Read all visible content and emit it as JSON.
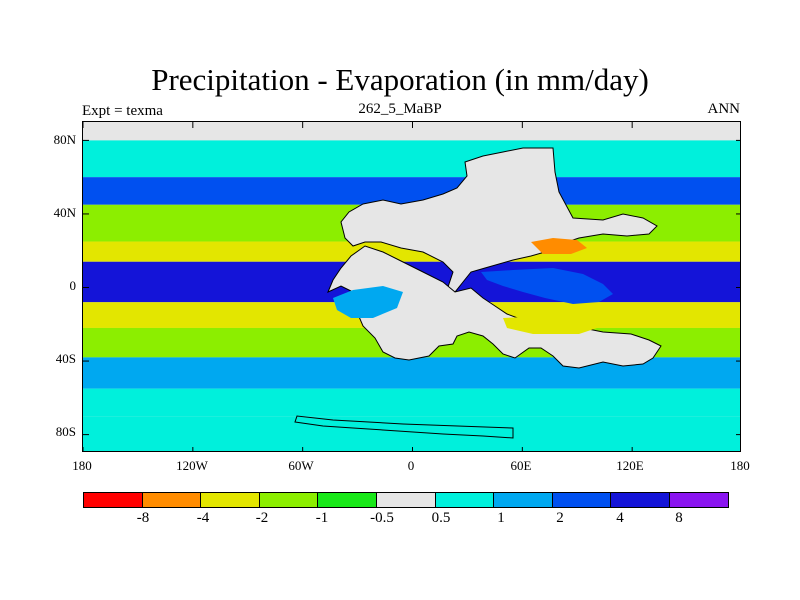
{
  "title": "Precipitation - Evaporation (in mm/day)",
  "subtitle": "262_5_MaBP",
  "left_label": "Expt = texma",
  "right_label": "ANN",
  "chart_data": {
    "type": "heatmap",
    "title": "Precipitation - Evaporation (in mm/day)",
    "subtitle": "262_5_MaBP",
    "experiment": "Expt = texma",
    "season": "ANN",
    "units": "mm/day",
    "x_axis": {
      "range": [
        -180,
        180
      ],
      "ticks": [
        -180,
        -120,
        -60,
        0,
        60,
        120,
        180
      ],
      "tick_labels": [
        "180",
        "120W",
        "60W",
        "0",
        "60E",
        "120E",
        "180"
      ]
    },
    "y_axis": {
      "range": [
        -90,
        90
      ],
      "ticks": [
        80,
        40,
        0,
        -40,
        -80
      ],
      "tick_labels": [
        "80N",
        "40N",
        "0",
        "40S",
        "80S"
      ]
    },
    "levels": [
      -8,
      -4,
      -2,
      -1,
      -0.5,
      0.5,
      1,
      2,
      4,
      8
    ],
    "level_labels": [
      "-8",
      "-4",
      "-2",
      "-1",
      "-0.5",
      "0.5",
      "1",
      "2",
      "4",
      "8"
    ],
    "colors": [
      "#ff0000",
      "#ff8c00",
      "#e3e600",
      "#8cee00",
      "#18e818",
      "#e6e6e6",
      "#00f0dc",
      "#00a8f0",
      "#0050f0",
      "#1414d8",
      "#8a14f0"
    ],
    "coastline_color": "#000000",
    "zonal_bands": [
      {
        "lat": [
          60,
          80
        ],
        "value": 0.6
      },
      {
        "lat": [
          45,
          60
        ],
        "value": 2.5
      },
      {
        "lat": [
          25,
          45
        ],
        "value": -1.5
      },
      {
        "lat": [
          14,
          25
        ],
        "value": -2.5
      },
      {
        "lat": [
          -8,
          14
        ],
        "value": 5
      },
      {
        "lat": [
          -22,
          -8
        ],
        "value": -3
      },
      {
        "lat": [
          -38,
          -22
        ],
        "value": -1.5
      },
      {
        "lat": [
          -55,
          -38
        ],
        "value": 1.5
      },
      {
        "lat": [
          -70,
          -55
        ],
        "value": 0.8
      },
      {
        "lat": [
          -90,
          -70
        ],
        "value": 0.6
      }
    ],
    "continents": [
      {
        "name": "Pangaea",
        "value": 0
      }
    ]
  }
}
